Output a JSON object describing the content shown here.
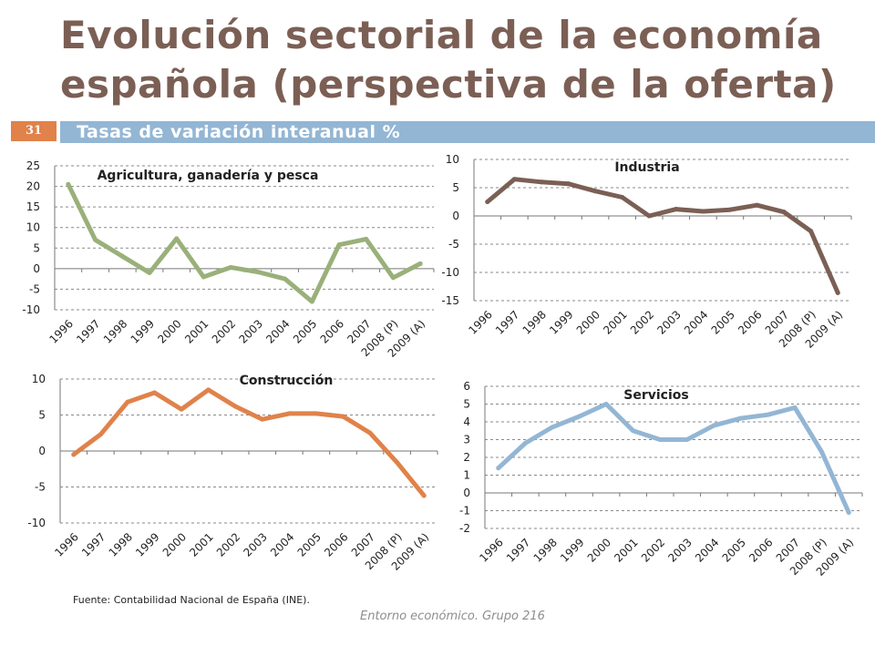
{
  "header": {
    "title": "Evolución sectorial de la economía española (perspectiva de la oferta)",
    "slide_number": "31",
    "subtitle": "Tasas de variación interanual %"
  },
  "source": "Fuente: Contabilidad Nacional de España (INE).",
  "footer": "Entorno económico. Grupo 216",
  "colors": {
    "title": "#7b5f55",
    "accent_orange": "#e0824a",
    "subtitle_bar": "#93b6d4",
    "grid": "#8a8a8a"
  },
  "chart_data": [
    {
      "id": "agricultura",
      "type": "line",
      "title": "Agricultura, ganadería y pesca",
      "categories": [
        "1996",
        "1997",
        "1998",
        "1999",
        "2000",
        "2001",
        "2002",
        "2003",
        "2004",
        "2005",
        "2006",
        "2007",
        "2008 (P)",
        "2009 (A)"
      ],
      "values": [
        20.5,
        7,
        3,
        -1,
        7.3,
        -2,
        0.3,
        -0.8,
        -2.5,
        -8,
        5.8,
        7.2,
        -2.2,
        1.2
      ],
      "ylim": [
        -10,
        25
      ],
      "yticks": [
        -10,
        -5,
        0,
        5,
        10,
        15,
        20,
        25
      ],
      "color": "#9ab07a",
      "grid": true,
      "xlabel": "",
      "ylabel": ""
    },
    {
      "id": "industria",
      "type": "line",
      "title": "Industria",
      "categories": [
        "1996",
        "1997",
        "1998",
        "1999",
        "2000",
        "2001",
        "2002",
        "2003",
        "2004",
        "2005",
        "2006",
        "2007",
        "2008 (P)",
        "2009 (A)"
      ],
      "values": [
        2.5,
        6.5,
        6,
        5.7,
        4.4,
        3.3,
        0,
        1.2,
        0.8,
        1.1,
        1.9,
        0.7,
        -2.7,
        -13.6
      ],
      "ylim": [
        -15,
        10
      ],
      "yticks": [
        -15,
        -10,
        -5,
        0,
        5,
        10
      ],
      "color": "#7b5f55",
      "grid": true,
      "xlabel": "",
      "ylabel": ""
    },
    {
      "id": "construccion",
      "type": "line",
      "title": "Construcción",
      "categories": [
        "1996",
        "1997",
        "1998",
        "1999",
        "2000",
        "2001",
        "2002",
        "2003",
        "2004",
        "2005",
        "2006",
        "2007",
        "2008 (P)",
        "2009 (A)"
      ],
      "values": [
        -0.5,
        2.3,
        6.8,
        8.1,
        5.8,
        8.5,
        6.2,
        4.4,
        5.2,
        5.2,
        4.8,
        2.5,
        -1.6,
        -6.2
      ],
      "ylim": [
        -10,
        10
      ],
      "yticks": [
        -10,
        -5,
        0,
        5,
        10
      ],
      "color": "#e0824a",
      "grid": true,
      "xlabel": "",
      "ylabel": ""
    },
    {
      "id": "servicios",
      "type": "line",
      "title": "Servicios",
      "categories": [
        "1996",
        "1997",
        "1998",
        "1999",
        "2000",
        "2001",
        "2002",
        "2003",
        "2004",
        "2005",
        "2006",
        "2007",
        "2008 (P)",
        "2009 (A)"
      ],
      "values": [
        1.4,
        2.8,
        3.7,
        4.3,
        5,
        3.5,
        3,
        3,
        3.8,
        4.2,
        4.4,
        4.8,
        2.3,
        -1.1
      ],
      "ylim": [
        -2,
        6
      ],
      "yticks": [
        -2,
        -1,
        0,
        1,
        2,
        3,
        4,
        5,
        6
      ],
      "color": "#93b6d4",
      "grid": true,
      "xlabel": "",
      "ylabel": ""
    }
  ]
}
